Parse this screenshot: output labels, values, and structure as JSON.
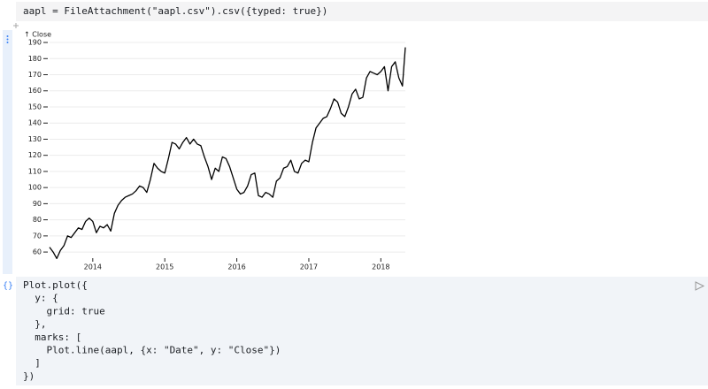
{
  "top_cell": {
    "code": "aapl = FileAttachment(\"aapl.csv\").csv({typed: true})"
  },
  "chart_data": {
    "type": "line",
    "y_label": "↑ Close",
    "grid": true,
    "color": "#000000",
    "x": [
      2013.4,
      2013.45,
      2013.5,
      2013.55,
      2013.6,
      2013.65,
      2013.7,
      2013.75,
      2013.8,
      2013.85,
      2013.9,
      2013.95,
      2014.0,
      2014.05,
      2014.1,
      2014.15,
      2014.2,
      2014.25,
      2014.3,
      2014.35,
      2014.4,
      2014.45,
      2014.5,
      2014.55,
      2014.6,
      2014.65,
      2014.7,
      2014.75,
      2014.8,
      2014.85,
      2014.9,
      2014.95,
      2015.0,
      2015.05,
      2015.1,
      2015.15,
      2015.2,
      2015.25,
      2015.3,
      2015.35,
      2015.4,
      2015.45,
      2015.5,
      2015.55,
      2015.6,
      2015.65,
      2015.7,
      2015.75,
      2015.8,
      2015.85,
      2015.9,
      2015.95,
      2016.0,
      2016.05,
      2016.1,
      2016.15,
      2016.2,
      2016.25,
      2016.3,
      2016.35,
      2016.4,
      2016.45,
      2016.5,
      2016.55,
      2016.6,
      2016.65,
      2016.7,
      2016.75,
      2016.8,
      2016.85,
      2016.9,
      2016.95,
      2017.0,
      2017.05,
      2017.1,
      2017.15,
      2017.2,
      2017.25,
      2017.3,
      2017.35,
      2017.4,
      2017.45,
      2017.5,
      2017.55,
      2017.6,
      2017.65,
      2017.7,
      2017.75,
      2017.8,
      2017.85,
      2017.9,
      2017.95,
      2018.0,
      2018.05,
      2018.1,
      2018.15,
      2018.2,
      2018.25,
      2018.3,
      2018.34
    ],
    "series": [
      {
        "name": "Close",
        "values": [
          63,
          60,
          56,
          61,
          64,
          70,
          69,
          72,
          75,
          74,
          79,
          81,
          79,
          72,
          76,
          75,
          77,
          73,
          84,
          89,
          92,
          94,
          95,
          96,
          98,
          101,
          100,
          97,
          105,
          115,
          112,
          110,
          109,
          118,
          128,
          127,
          124,
          128,
          131,
          127,
          130,
          127,
          126,
          119,
          113,
          105,
          112,
          110,
          119,
          118,
          113,
          106,
          99,
          96,
          97,
          101,
          108,
          109,
          95,
          94,
          97,
          96,
          94,
          104,
          106,
          112,
          113,
          117,
          110,
          109,
          115,
          117,
          116,
          128,
          137,
          140,
          143,
          144,
          149,
          155,
          153,
          146,
          144,
          150,
          158,
          161,
          155,
          156,
          168,
          172,
          171,
          170,
          172,
          175,
          160,
          175,
          178,
          168,
          163,
          187
        ]
      }
    ],
    "xlim": [
      2013.4,
      2018.34
    ],
    "xticks": [
      2014,
      2015,
      2016,
      2017,
      2018
    ],
    "ylim": [
      55,
      192
    ],
    "yticks": [
      60,
      70,
      80,
      90,
      100,
      110,
      120,
      130,
      140,
      150,
      160,
      170,
      180,
      190
    ]
  },
  "code_cell": {
    "gutter": "{}",
    "lines": [
      "Plot.plot({",
      "  y: {",
      "    grid: true",
      "  },",
      "  marks: [",
      "    Plot.line(aapl, {x: \"Date\", y: \"Close\"})",
      "  ]",
      "})"
    ]
  }
}
